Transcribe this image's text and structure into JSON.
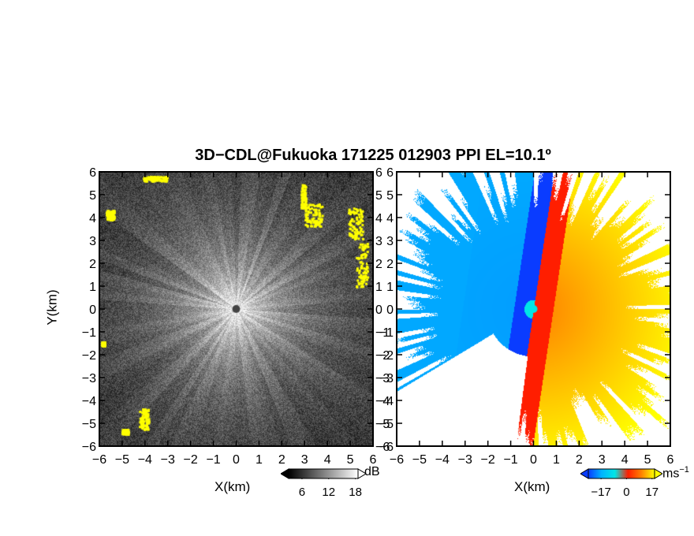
{
  "title": "3D−CDL@Fukuoka 171225 012903 PPI EL=10.1º",
  "chart_data": [
    {
      "type": "heatmap",
      "panel": "left",
      "description_of_field": "radar power PPI, grayscale",
      "xlabel": "X(km)",
      "ylabel": "Y(km)",
      "xlim": [
        -6,
        6
      ],
      "ylim": [
        -6,
        6
      ],
      "x_ticks": [
        -6,
        -5,
        -4,
        -3,
        -2,
        -1,
        0,
        1,
        2,
        3,
        4,
        5,
        6
      ],
      "y_ticks": [
        -6,
        -5,
        -4,
        -3,
        -2,
        -1,
        0,
        1,
        2,
        3,
        4,
        5,
        6
      ],
      "x_tick_labels": [
        "−6",
        "−5",
        "−4",
        "−3",
        "−2",
        "−1",
        "0",
        "1",
        "2",
        "3",
        "4",
        "5",
        "6"
      ],
      "y_tick_labels": [
        "−6",
        "−5",
        "−4",
        "−3",
        "−2",
        "−1",
        "0",
        "1",
        "2",
        "3",
        "4",
        "5",
        "6"
      ],
      "colorbar": {
        "unit": "dB",
        "ticks": [
          6,
          12,
          18
        ],
        "tick_labels": [
          "6",
          "12",
          "18"
        ],
        "colormap": "grayscale with yellow overflow",
        "colors": [
          "#000000",
          "#ffffff",
          "#ffff00"
        ]
      },
      "highlight_color": "#ffff00"
    },
    {
      "type": "heatmap",
      "panel": "right",
      "description_of_field": "doppler velocity PPI",
      "xlabel": "X(km)",
      "ylabel": "",
      "xlim": [
        -6,
        6
      ],
      "ylim": [
        -6,
        6
      ],
      "x_ticks": [
        -6,
        -5,
        -4,
        -3,
        -2,
        -1,
        0,
        1,
        2,
        3,
        4,
        5,
        6
      ],
      "x_tick_labels": [
        "−6",
        "−5",
        "−4",
        "−3",
        "−2",
        "−1",
        "0",
        "1",
        "2",
        "3",
        "4",
        "5",
        "6"
      ],
      "colorbar": {
        "unit": "ms",
        "unit_exponent": "−1",
        "ticks": [
          -17,
          0,
          17
        ],
        "tick_labels": [
          "−17",
          "0",
          "17"
        ],
        "colors": [
          "#0a3cff",
          "#00b4ff",
          "#00e6e6",
          "#ff1e00",
          "#ff8000",
          "#ffff00"
        ]
      }
    }
  ]
}
